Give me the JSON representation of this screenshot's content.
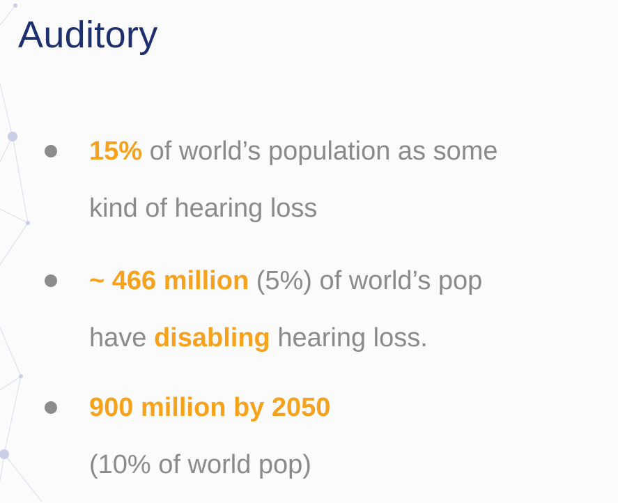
{
  "slide": {
    "title": "Auditory"
  },
  "bullets": [
    {
      "highlight": "15%",
      "line1_rest": " of world’s population as some",
      "line2": "kind of hearing loss"
    },
    {
      "highlight": "~ 466 million",
      "line1_rest": " (5%) of world’s pop",
      "line2_prefix": "have ",
      "line2_highlight": "disabling",
      "line2_suffix": " hearing loss."
    },
    {
      "highlight": "900 million by 2050",
      "line2": "(10% of world pop)"
    }
  ],
  "colors": {
    "title": "#1d2f6e",
    "body_text": "#8a8a8a",
    "highlight": "#f7a21d",
    "bullet_dot": "#8c8c8c",
    "background": "#fbfbfb",
    "network_decoration": "#c9cfe6"
  }
}
